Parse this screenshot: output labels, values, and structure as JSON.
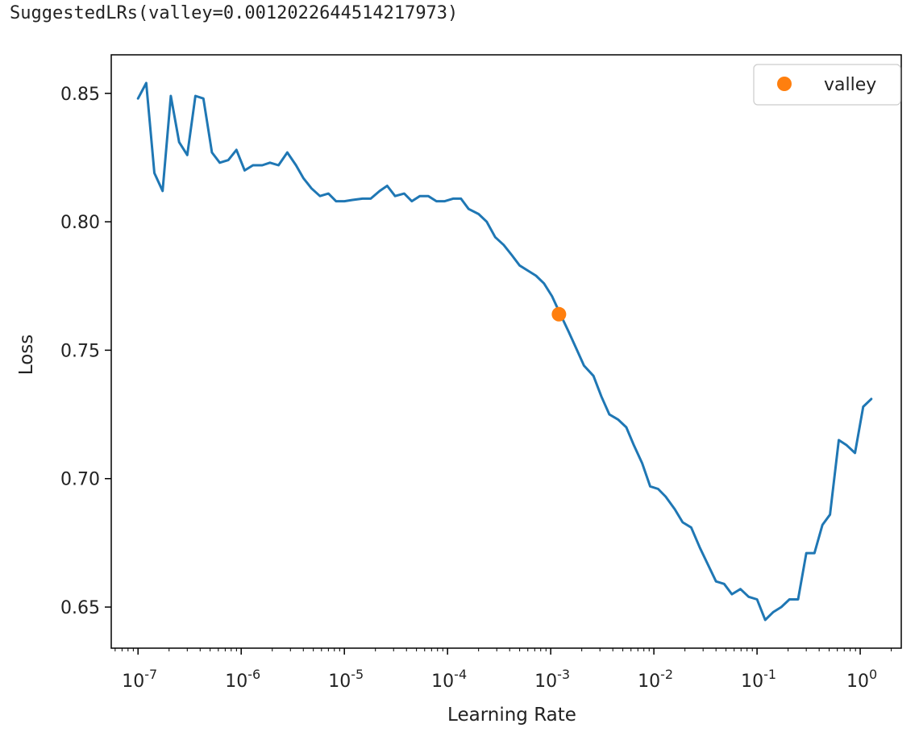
{
  "output": {
    "text": "SuggestedLRs(valley=0.0012022644514217973)"
  },
  "chart_data": {
    "type": "line",
    "title": "",
    "xlabel": "Learning Rate",
    "ylabel": "Loss",
    "xscale": "log",
    "xlim": [
      5.5e-08,
      2.5
    ],
    "ylim": [
      0.634,
      0.865
    ],
    "x_ticks": [
      {
        "value": 1e-07,
        "label": "10^-7"
      },
      {
        "value": 1e-06,
        "label": "10^-6"
      },
      {
        "value": 1e-05,
        "label": "10^-5"
      },
      {
        "value": 0.0001,
        "label": "10^-4"
      },
      {
        "value": 0.001,
        "label": "10^-3"
      },
      {
        "value": 0.01,
        "label": "10^-2"
      },
      {
        "value": 0.1,
        "label": "10^-1"
      },
      {
        "value": 1,
        "label": "10^0"
      }
    ],
    "y_ticks": [
      {
        "value": 0.65,
        "label": "0.65"
      },
      {
        "value": 0.7,
        "label": "0.70"
      },
      {
        "value": 0.75,
        "label": "0.75"
      },
      {
        "value": 0.8,
        "label": "0.80"
      },
      {
        "value": 0.85,
        "label": "0.85"
      }
    ],
    "grid": false,
    "legend": {
      "position": "top-right",
      "entries": [
        "valley"
      ]
    },
    "colors": {
      "line": "#1f77b4",
      "marker": "#ff7f0e"
    },
    "series": [
      {
        "x": [
          1e-07,
          1.2e-07,
          1.44e-07,
          1.73e-07,
          2.08e-07,
          2.5e-07,
          3e-07,
          3.6e-07,
          4.3e-07,
          5.2e-07,
          6.2e-07,
          7.5e-07,
          9e-07,
          1.08e-06,
          1.3e-06,
          1.6e-06,
          1.9e-06,
          2.3e-06,
          2.8e-06,
          3.4e-06,
          4e-06,
          4.8e-06,
          5.8e-06,
          7e-06,
          8.3e-06,
          1e-05,
          1.2e-05,
          1.5e-05,
          1.8e-05,
          2.2e-05,
          2.6e-05,
          3.1e-05,
          3.8e-05,
          4.5e-05,
          5.4e-05,
          6.5e-05,
          7.8e-05,
          9.4e-05,
          0.000113,
          0.000135,
          0.00016,
          0.0002,
          0.00024,
          0.00029,
          0.00035,
          0.00042,
          0.0005,
          0.0006,
          0.00072,
          0.00086,
          0.00103,
          0.00124,
          0.0015,
          0.0018,
          0.0021,
          0.0026,
          0.0031,
          0.0037,
          0.0045,
          0.0054,
          0.0064,
          0.0077,
          0.0092,
          0.011,
          0.013,
          0.016,
          0.019,
          0.023,
          0.028,
          0.033,
          0.04,
          0.048,
          0.057,
          0.069,
          0.083,
          0.1,
          0.12,
          0.143,
          0.172,
          0.206,
          0.25,
          0.3,
          0.36,
          0.43,
          0.51,
          0.62,
          0.74,
          0.89,
          1.07,
          1.28
        ],
        "values": [
          0.848,
          0.854,
          0.819,
          0.812,
          0.849,
          0.831,
          0.826,
          0.849,
          0.848,
          0.827,
          0.823,
          0.824,
          0.828,
          0.82,
          0.822,
          0.822,
          0.823,
          0.822,
          0.827,
          0.822,
          0.817,
          0.813,
          0.81,
          0.811,
          0.808,
          0.808,
          0.8085,
          0.809,
          0.809,
          0.812,
          0.814,
          0.81,
          0.811,
          0.808,
          0.81,
          0.81,
          0.808,
          0.808,
          0.809,
          0.809,
          0.805,
          0.803,
          0.8,
          0.794,
          0.791,
          0.787,
          0.783,
          0.781,
          0.779,
          0.776,
          0.771,
          0.764,
          0.757,
          0.75,
          0.744,
          0.74,
          0.732,
          0.725,
          0.723,
          0.72,
          0.713,
          0.706,
          0.697,
          0.696,
          0.693,
          0.688,
          0.683,
          0.681,
          0.673,
          0.667,
          0.66,
          0.659,
          0.655,
          0.657,
          0.654,
          0.653,
          0.645,
          0.648,
          0.65,
          0.653,
          0.653,
          0.671,
          0.671,
          0.682,
          0.686,
          0.715,
          0.713,
          0.71,
          0.728,
          0.731
        ]
      }
    ],
    "valley": {
      "label": "valley",
      "x": 0.0012022644514217973,
      "y": 0.764
    }
  }
}
